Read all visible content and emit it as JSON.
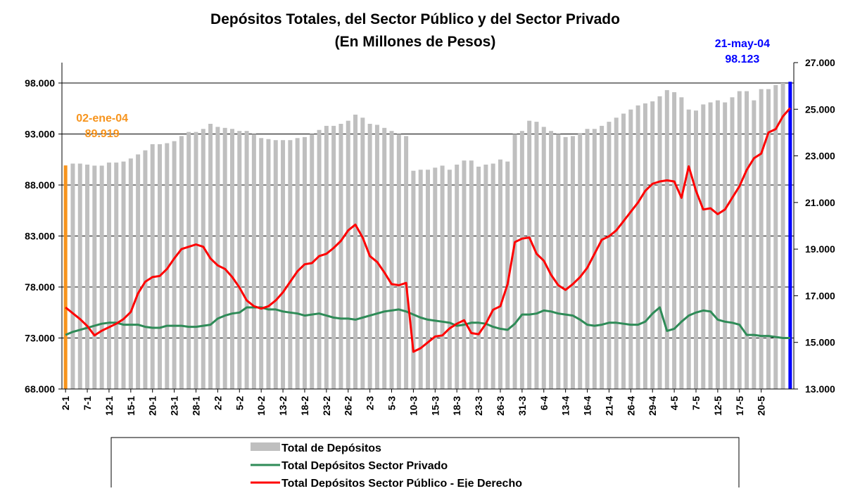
{
  "chart_data": {
    "type": "bar",
    "title": "Depósitos Totales, del Sector Público y del Sector Privado",
    "subtitle": "(En Millones de Pesos)",
    "categories": [
      "2-1",
      null,
      null,
      "7-1",
      null,
      null,
      "12-1",
      null,
      null,
      "15-1",
      null,
      null,
      "20-1",
      null,
      null,
      "23-1",
      null,
      null,
      "28-1",
      null,
      null,
      "2-2",
      null,
      null,
      "5-2",
      null,
      null,
      "10-2",
      null,
      null,
      "13-2",
      null,
      null,
      "18-2",
      null,
      null,
      "23-2",
      null,
      null,
      "26-2",
      null,
      null,
      "2-3",
      null,
      null,
      "5-3",
      null,
      null,
      "10-3",
      null,
      null,
      "15-3",
      null,
      null,
      "18-3",
      null,
      null,
      "23-3",
      null,
      null,
      "26-3",
      null,
      null,
      "31-3",
      null,
      null,
      "6-4",
      null,
      null,
      "13-4",
      null,
      null,
      "16-4",
      null,
      null,
      "21-4",
      null,
      null,
      "26-4",
      null,
      null,
      "29-4",
      null,
      null,
      "4-5",
      null,
      null,
      "7-5",
      null,
      null,
      "12-5",
      null,
      null,
      "17-5",
      null,
      null,
      "20-5",
      null,
      null,
      null,
      null
    ],
    "series": [
      {
        "name": "Total de Depósitos",
        "type": "bar",
        "color": "#bfbfbf",
        "axis": "y",
        "values": [
          89919,
          90100,
          90100,
          90000,
          89900,
          89900,
          90200,
          90200,
          90300,
          90600,
          91000,
          91400,
          92000,
          92000,
          92100,
          92300,
          92800,
          93200,
          93200,
          93500,
          94000,
          93700,
          93600,
          93500,
          93300,
          93300,
          93000,
          92600,
          92500,
          92400,
          92400,
          92400,
          92600,
          92700,
          93000,
          93400,
          93800,
          93800,
          94000,
          94300,
          94900,
          94600,
          94000,
          93900,
          93600,
          93300,
          93000,
          92800,
          89400,
          89500,
          89500,
          89700,
          89900,
          89500,
          90000,
          90400,
          90400,
          89800,
          90000,
          90100,
          90500,
          90300,
          93000,
          93300,
          94300,
          94200,
          93700,
          93300,
          93000,
          92700,
          92800,
          93100,
          93500,
          93500,
          93800,
          94200,
          94600,
          95000,
          95400,
          95800,
          96000,
          96200,
          96700,
          97300,
          97100,
          96600,
          95400,
          95300,
          95900,
          96100,
          96300,
          96100,
          96600,
          97200,
          97200,
          96300,
          97400,
          97400,
          97800,
          98000,
          98123
        ]
      },
      {
        "name": "Total Depósitos Sector Privado",
        "type": "line",
        "color": "#2e8b57",
        "axis": "y",
        "values": [
          73300,
          73600,
          73800,
          74000,
          74200,
          74400,
          74500,
          74500,
          74300,
          74300,
          74300,
          74100,
          74000,
          74000,
          74200,
          74200,
          74200,
          74100,
          74100,
          74200,
          74300,
          74900,
          75200,
          75400,
          75500,
          76000,
          76000,
          76000,
          75800,
          75800,
          75600,
          75500,
          75400,
          75200,
          75300,
          75400,
          75200,
          75000,
          74900,
          74900,
          74800,
          75000,
          75200,
          75400,
          75600,
          75700,
          75800,
          75600,
          75300,
          75000,
          74800,
          74700,
          74600,
          74500,
          74200,
          74300,
          74500,
          74500,
          74400,
          74100,
          73900,
          73800,
          74400,
          75300,
          75300,
          75400,
          75700,
          75600,
          75400,
          75300,
          75200,
          74800,
          74300,
          74200,
          74300,
          74500,
          74500,
          74400,
          74300,
          74300,
          74600,
          75400,
          76000,
          73700,
          73900,
          74600,
          75200,
          75500,
          75700,
          75600,
          74800,
          74600,
          74500,
          74300,
          73300,
          73300,
          73200,
          73200,
          73100,
          73000,
          73000
        ]
      },
      {
        "name": "Total Depósitos Sector Público - Eje Derecho",
        "type": "line",
        "color": "#ff0000",
        "axis": "y2",
        "values": [
          16500,
          16250,
          16000,
          15700,
          15300,
          15500,
          15650,
          15800,
          16000,
          16300,
          17100,
          17600,
          17800,
          17850,
          18150,
          18600,
          19000,
          19100,
          19200,
          19100,
          18600,
          18300,
          18150,
          17800,
          17350,
          16800,
          16550,
          16450,
          16550,
          16800,
          17150,
          17600,
          18050,
          18350,
          18400,
          18700,
          18800,
          19050,
          19350,
          19800,
          20050,
          19500,
          18700,
          18450,
          18000,
          17500,
          17450,
          17550,
          14600,
          14750,
          15000,
          15250,
          15300,
          15600,
          15800,
          15950,
          15400,
          15350,
          15800,
          16400,
          16550,
          17500,
          19300,
          19450,
          19500,
          18800,
          18500,
          17900,
          17450,
          17250,
          17500,
          17800,
          18200,
          18800,
          19400,
          19550,
          19800,
          20200,
          20600,
          21000,
          21500,
          21800,
          21900,
          21950,
          21900,
          21200,
          22550,
          21500,
          20700,
          20750,
          20500,
          20700,
          21200,
          21700,
          22400,
          22900,
          23100,
          24000,
          24150,
          24700,
          25050
        ]
      }
    ],
    "annotations": [
      {
        "text": "02-ene-04",
        "value_label": "89.919",
        "at": "first",
        "color": "#f7941d"
      },
      {
        "text": "21-may-04",
        "value_label": "98.123",
        "at": "last",
        "color": "#0000ff"
      }
    ],
    "ylim": [
      68000,
      100000
    ],
    "yticks": [
      {
        "value": 68000,
        "label": "68.000"
      },
      {
        "value": 73000,
        "label": "73.000"
      },
      {
        "value": 78000,
        "label": "78.000"
      },
      {
        "value": 83000,
        "label": "83.000"
      },
      {
        "value": 88000,
        "label": "88.000"
      },
      {
        "value": 93000,
        "label": "93.000"
      },
      {
        "value": 98000,
        "label": "98.000"
      }
    ],
    "y2lim": [
      13000,
      27000
    ],
    "y2ticks": [
      {
        "value": 13000,
        "label": "13.000"
      },
      {
        "value": 15000,
        "label": "15.000"
      },
      {
        "value": 17000,
        "label": "17.000"
      },
      {
        "value": 19000,
        "label": "19.000"
      },
      {
        "value": 21000,
        "label": "21.000"
      },
      {
        "value": 23000,
        "label": "23.000"
      },
      {
        "value": 25000,
        "label": "25.000"
      },
      {
        "value": 27000,
        "label": "27.000"
      }
    ],
    "grid": true,
    "legend": "bottom"
  }
}
